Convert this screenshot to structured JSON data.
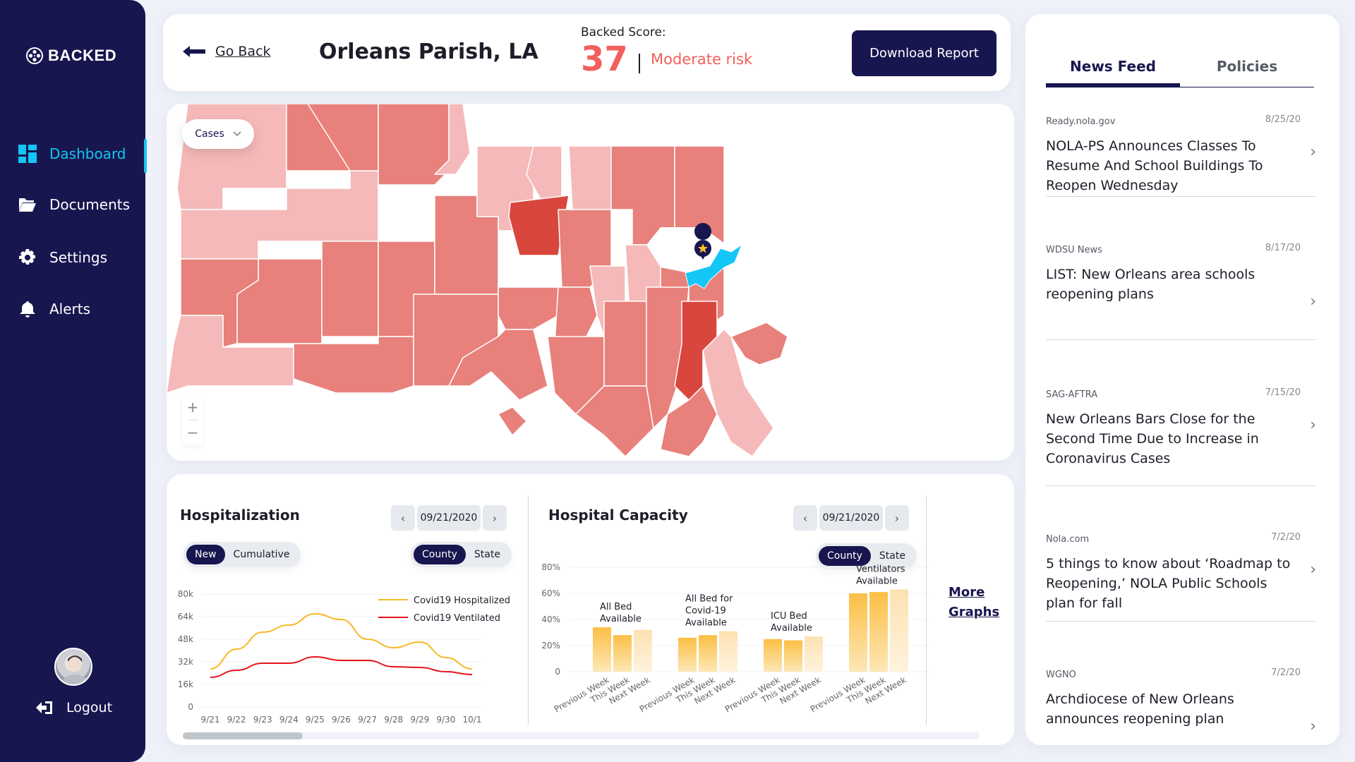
{
  "sidebar": {
    "brand": "BACKED",
    "items": [
      {
        "label": "Dashboard",
        "icon": "dashboard-icon",
        "active": true
      },
      {
        "label": "Documents",
        "icon": "folder-icon",
        "active": false
      },
      {
        "label": "Settings",
        "icon": "gear-icon",
        "active": false
      },
      {
        "label": "Alerts",
        "icon": "bell-icon",
        "active": false
      }
    ],
    "logout_label": "Logout"
  },
  "header": {
    "go_back_label": "Go Back",
    "title": "Orleans Parish, LA",
    "score_label": "Backed Score:",
    "score_value": "37",
    "risk_label": "Moderate risk",
    "download_label": "Download Report",
    "risk_color": "#f25f5c"
  },
  "map": {
    "metric_select": "Cases",
    "zoom_in": "+",
    "zoom_out": "−",
    "colors": {
      "low": "#f5b9b9",
      "mid": "#e8807b",
      "high": "#d9463e",
      "selected": "#13c6f5",
      "marker": "#18164f",
      "marker_star": "#f5c430"
    }
  },
  "hospitalization": {
    "title": "Hospitalization",
    "date": "09/21/2020",
    "mode_toggle": [
      "New",
      "Cumulative"
    ],
    "mode_active": "New",
    "scope_toggle": [
      "County",
      "State"
    ],
    "scope_active": "County"
  },
  "capacity": {
    "title": "Hospital Capacity",
    "date": "09/21/2020",
    "scope_toggle": [
      "County",
      "State"
    ],
    "scope_active": "County"
  },
  "more_graphs_label": "More Graphs",
  "chart_data": [
    {
      "type": "line",
      "title": "Hospitalization",
      "x": [
        "9/21",
        "9/22",
        "9/23",
        "9/24",
        "9/25",
        "9/26",
        "9/27",
        "9/28",
        "9/29",
        "9/30",
        "10/1"
      ],
      "yticks": [
        "0",
        "16k",
        "32k",
        "48k",
        "64k",
        "80k"
      ],
      "ylim": [
        0,
        80000
      ],
      "series": [
        {
          "name": "Covid19 Hospitalized",
          "color": "#f7b825",
          "values": [
            27000,
            41000,
            53000,
            58000,
            66000,
            62000,
            48000,
            42000,
            46000,
            35000,
            27000
          ]
        },
        {
          "name": "Covid19 Ventilated",
          "color": "#e8141b",
          "values": [
            21000,
            26000,
            31000,
            31000,
            35500,
            33000,
            33000,
            28500,
            28000,
            25000,
            23000
          ]
        }
      ],
      "legend": "top-right",
      "grid": true
    },
    {
      "type": "bar",
      "title": "Hospital Capacity",
      "groups": [
        "All Bed Available",
        "All Bed for Covid-19 Available",
        "ICU Bed Available",
        "Ventilators Available"
      ],
      "categories": [
        "Previous Week",
        "This Week",
        "Next Week"
      ],
      "yticks": [
        "0",
        "20%",
        "40%",
        "60%",
        "80%"
      ],
      "ylim": [
        0,
        80
      ],
      "series": [
        {
          "name": "Previous Week",
          "values": [
            34,
            26,
            25,
            60
          ]
        },
        {
          "name": "This Week",
          "values": [
            28,
            28,
            24,
            61
          ]
        },
        {
          "name": "Next Week",
          "values": [
            32,
            31,
            27,
            63
          ]
        }
      ],
      "grid": true
    }
  ],
  "news": {
    "tabs": [
      "News Feed",
      "Policies"
    ],
    "active_tab": "News Feed",
    "items": [
      {
        "source": "Ready.nola.gov",
        "date": "8/25/20",
        "headline": "NOLA-PS  Announces Classes To Resume And School Buildings To Reopen Wednesday"
      },
      {
        "source": "WDSU News",
        "date": "8/17/20",
        "headline": "LIST: New Orleans area schools reopening plans"
      },
      {
        "source": "SAG-AFTRA",
        "date": "7/15/20",
        "headline": "New Orleans Bars Close for the Second Time Due to Increase in Coronavirus Cases"
      },
      {
        "source": "Nola.com",
        "date": "7/2/20",
        "headline": "5 things to know about ‘Roadmap to Reopening,’ NOLA Public Schools plan for fall"
      },
      {
        "source": "WGNO",
        "date": "7/2/20",
        "headline": "Archdiocese of New Orleans announces reopening plan"
      }
    ]
  }
}
